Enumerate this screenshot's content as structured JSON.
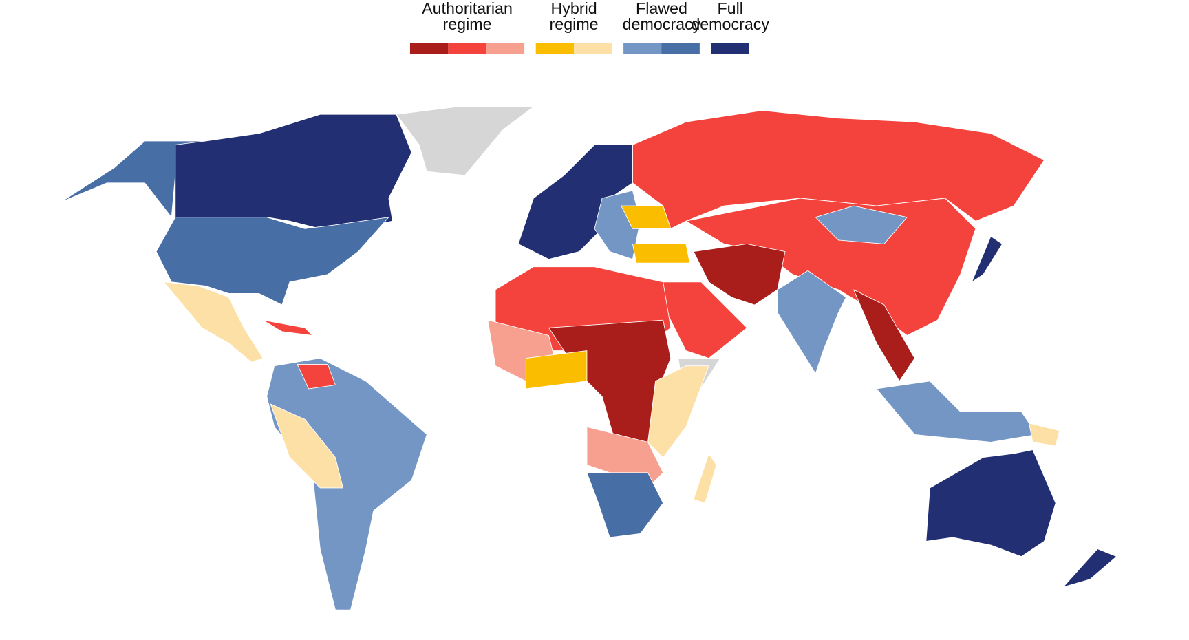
{
  "legend": {
    "groups": [
      {
        "label_lines": [
          "Authoritarian",
          "regime"
        ],
        "colors": [
          "#a91d1a",
          "#f4433c",
          "#f7a08f"
        ]
      },
      {
        "label_lines": [
          "Hybrid",
          "regime"
        ],
        "colors": [
          "#fbbd00",
          "#fde0a6"
        ]
      },
      {
        "label_lines": [
          "Flawed",
          "democracy"
        ],
        "colors": [
          "#7496c4",
          "#486ea6"
        ]
      },
      {
        "label_lines": [
          "Full",
          "democracy"
        ],
        "colors": [
          "#222f73"
        ]
      }
    ]
  }
}
